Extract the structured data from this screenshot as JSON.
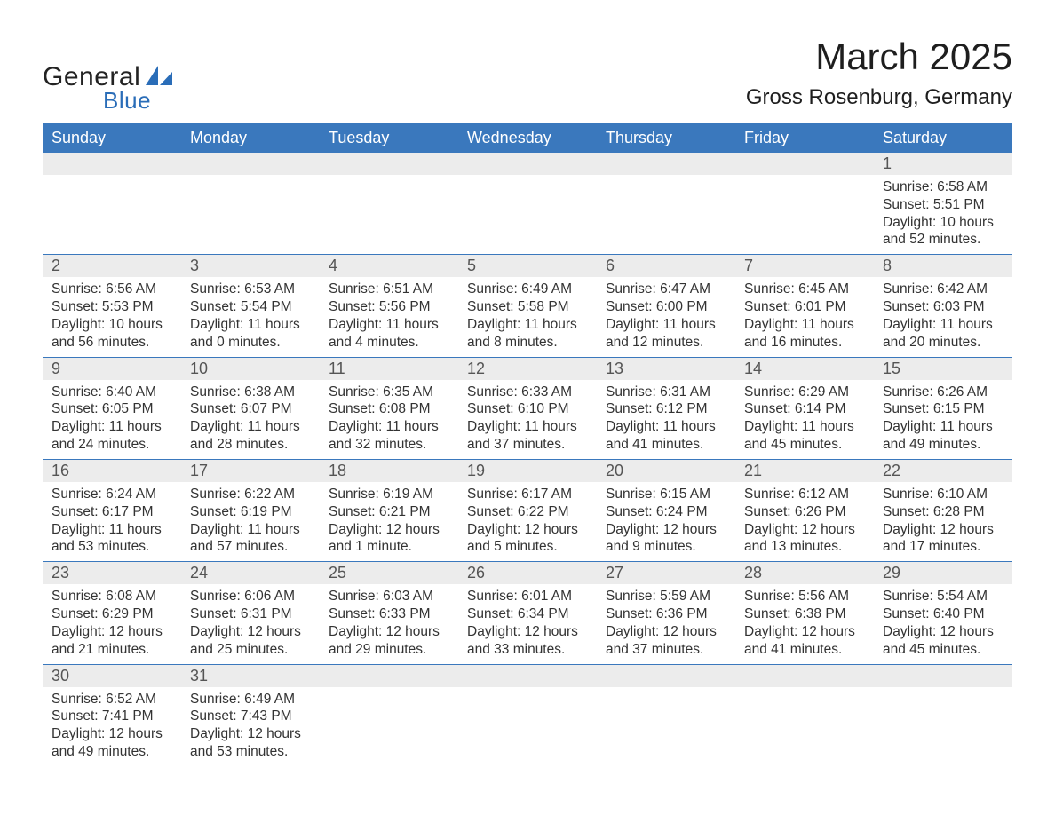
{
  "logo": {
    "text1": "General",
    "text2": "Blue",
    "shape_color": "#2a6db8"
  },
  "title": {
    "month": "March 2025",
    "location": "Gross Rosenburg, Germany"
  },
  "colors": {
    "header_bg": "#3a78bd",
    "header_fg": "#ffffff",
    "band_bg": "#ececec",
    "row_border": "#3a78bd",
    "text": "#333333",
    "accent": "#2a6db8"
  },
  "days_of_week": [
    "Sunday",
    "Monday",
    "Tuesday",
    "Wednesday",
    "Thursday",
    "Friday",
    "Saturday"
  ],
  "weeks": [
    [
      null,
      null,
      null,
      null,
      null,
      null,
      {
        "n": "1",
        "sunrise": "6:58 AM",
        "sunset": "5:51 PM",
        "daylight": "10 hours and 52 minutes."
      }
    ],
    [
      {
        "n": "2",
        "sunrise": "6:56 AM",
        "sunset": "5:53 PM",
        "daylight": "10 hours and 56 minutes."
      },
      {
        "n": "3",
        "sunrise": "6:53 AM",
        "sunset": "5:54 PM",
        "daylight": "11 hours and 0 minutes."
      },
      {
        "n": "4",
        "sunrise": "6:51 AM",
        "sunset": "5:56 PM",
        "daylight": "11 hours and 4 minutes."
      },
      {
        "n": "5",
        "sunrise": "6:49 AM",
        "sunset": "5:58 PM",
        "daylight": "11 hours and 8 minutes."
      },
      {
        "n": "6",
        "sunrise": "6:47 AM",
        "sunset": "6:00 PM",
        "daylight": "11 hours and 12 minutes."
      },
      {
        "n": "7",
        "sunrise": "6:45 AM",
        "sunset": "6:01 PM",
        "daylight": "11 hours and 16 minutes."
      },
      {
        "n": "8",
        "sunrise": "6:42 AM",
        "sunset": "6:03 PM",
        "daylight": "11 hours and 20 minutes."
      }
    ],
    [
      {
        "n": "9",
        "sunrise": "6:40 AM",
        "sunset": "6:05 PM",
        "daylight": "11 hours and 24 minutes."
      },
      {
        "n": "10",
        "sunrise": "6:38 AM",
        "sunset": "6:07 PM",
        "daylight": "11 hours and 28 minutes."
      },
      {
        "n": "11",
        "sunrise": "6:35 AM",
        "sunset": "6:08 PM",
        "daylight": "11 hours and 32 minutes."
      },
      {
        "n": "12",
        "sunrise": "6:33 AM",
        "sunset": "6:10 PM",
        "daylight": "11 hours and 37 minutes."
      },
      {
        "n": "13",
        "sunrise": "6:31 AM",
        "sunset": "6:12 PM",
        "daylight": "11 hours and 41 minutes."
      },
      {
        "n": "14",
        "sunrise": "6:29 AM",
        "sunset": "6:14 PM",
        "daylight": "11 hours and 45 minutes."
      },
      {
        "n": "15",
        "sunrise": "6:26 AM",
        "sunset": "6:15 PM",
        "daylight": "11 hours and 49 minutes."
      }
    ],
    [
      {
        "n": "16",
        "sunrise": "6:24 AM",
        "sunset": "6:17 PM",
        "daylight": "11 hours and 53 minutes."
      },
      {
        "n": "17",
        "sunrise": "6:22 AM",
        "sunset": "6:19 PM",
        "daylight": "11 hours and 57 minutes."
      },
      {
        "n": "18",
        "sunrise": "6:19 AM",
        "sunset": "6:21 PM",
        "daylight": "12 hours and 1 minute."
      },
      {
        "n": "19",
        "sunrise": "6:17 AM",
        "sunset": "6:22 PM",
        "daylight": "12 hours and 5 minutes."
      },
      {
        "n": "20",
        "sunrise": "6:15 AM",
        "sunset": "6:24 PM",
        "daylight": "12 hours and 9 minutes."
      },
      {
        "n": "21",
        "sunrise": "6:12 AM",
        "sunset": "6:26 PM",
        "daylight": "12 hours and 13 minutes."
      },
      {
        "n": "22",
        "sunrise": "6:10 AM",
        "sunset": "6:28 PM",
        "daylight": "12 hours and 17 minutes."
      }
    ],
    [
      {
        "n": "23",
        "sunrise": "6:08 AM",
        "sunset": "6:29 PM",
        "daylight": "12 hours and 21 minutes."
      },
      {
        "n": "24",
        "sunrise": "6:06 AM",
        "sunset": "6:31 PM",
        "daylight": "12 hours and 25 minutes."
      },
      {
        "n": "25",
        "sunrise": "6:03 AM",
        "sunset": "6:33 PM",
        "daylight": "12 hours and 29 minutes."
      },
      {
        "n": "26",
        "sunrise": "6:01 AM",
        "sunset": "6:34 PM",
        "daylight": "12 hours and 33 minutes."
      },
      {
        "n": "27",
        "sunrise": "5:59 AM",
        "sunset": "6:36 PM",
        "daylight": "12 hours and 37 minutes."
      },
      {
        "n": "28",
        "sunrise": "5:56 AM",
        "sunset": "6:38 PM",
        "daylight": "12 hours and 41 minutes."
      },
      {
        "n": "29",
        "sunrise": "5:54 AM",
        "sunset": "6:40 PM",
        "daylight": "12 hours and 45 minutes."
      }
    ],
    [
      {
        "n": "30",
        "sunrise": "6:52 AM",
        "sunset": "7:41 PM",
        "daylight": "12 hours and 49 minutes."
      },
      {
        "n": "31",
        "sunrise": "6:49 AM",
        "sunset": "7:43 PM",
        "daylight": "12 hours and 53 minutes."
      },
      null,
      null,
      null,
      null,
      null
    ]
  ],
  "labels": {
    "sunrise": "Sunrise: ",
    "sunset": "Sunset: ",
    "daylight": "Daylight: "
  }
}
